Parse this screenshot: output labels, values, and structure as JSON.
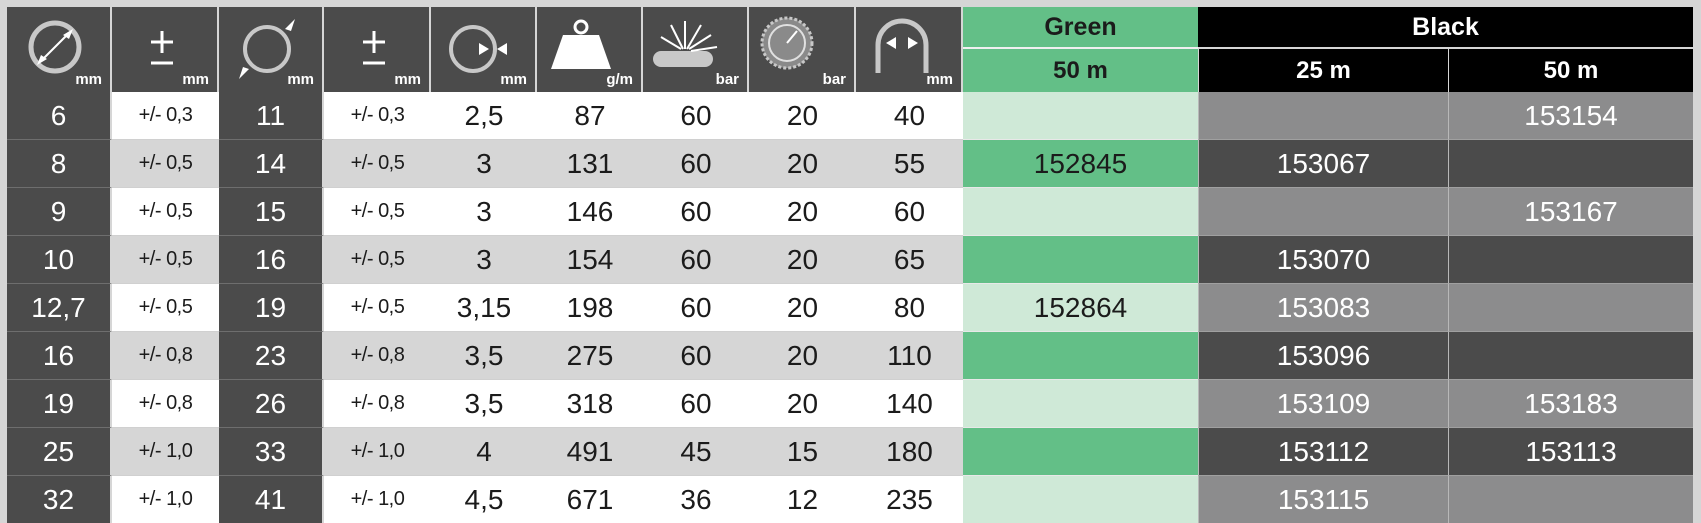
{
  "header": {
    "columns": [
      {
        "icon": "inner-diameter-icon",
        "unit": "mm"
      },
      {
        "icon": "plus-minus-icon",
        "unit": "mm"
      },
      {
        "icon": "outer-diameter-icon",
        "unit": "mm"
      },
      {
        "icon": "plus-minus-icon",
        "unit": "mm"
      },
      {
        "icon": "wall-thickness-icon",
        "unit": "mm"
      },
      {
        "icon": "weight-icon",
        "unit": "g/m"
      },
      {
        "icon": "burst-pressure-icon",
        "unit": "bar"
      },
      {
        "icon": "pressure-gauge-icon",
        "unit": "bar"
      },
      {
        "icon": "bend-radius-icon",
        "unit": "mm"
      }
    ],
    "groups": {
      "green": {
        "label": "Green",
        "sub": [
          "50 m"
        ]
      },
      "black": {
        "label": "Black",
        "sub": [
          "25 m",
          "50 m"
        ]
      }
    }
  },
  "rows": [
    {
      "cells": [
        "6",
        "+/- 0,3",
        "11",
        "+/- 0,3",
        "2,5",
        "87",
        "60",
        "20",
        "40"
      ],
      "green_50": "",
      "black_25": "",
      "black_50": "153154"
    },
    {
      "cells": [
        "8",
        "+/- 0,5",
        "14",
        "+/- 0,5",
        "3",
        "131",
        "60",
        "20",
        "55"
      ],
      "green_50": "152845",
      "black_25": "153067",
      "black_50": ""
    },
    {
      "cells": [
        "9",
        "+/- 0,5",
        "15",
        "+/- 0,5",
        "3",
        "146",
        "60",
        "20",
        "60"
      ],
      "green_50": "",
      "black_25": "",
      "black_50": "153167"
    },
    {
      "cells": [
        "10",
        "+/- 0,5",
        "16",
        "+/- 0,5",
        "3",
        "154",
        "60",
        "20",
        "65"
      ],
      "green_50": "",
      "black_25": "153070",
      "black_50": ""
    },
    {
      "cells": [
        "12,7",
        "+/- 0,5",
        "19",
        "+/- 0,5",
        "3,15",
        "198",
        "60",
        "20",
        "80"
      ],
      "green_50": "152864",
      "black_25": "153083",
      "black_50": ""
    },
    {
      "cells": [
        "16",
        "+/- 0,8",
        "23",
        "+/- 0,8",
        "3,5",
        "275",
        "60",
        "20",
        "110"
      ],
      "green_50": "",
      "black_25": "153096",
      "black_50": ""
    },
    {
      "cells": [
        "19",
        "+/- 0,8",
        "26",
        "+/- 0,8",
        "3,5",
        "318",
        "60",
        "20",
        "140"
      ],
      "green_50": "",
      "black_25": "153109",
      "black_50": "153183"
    },
    {
      "cells": [
        "25",
        "+/- 1,0",
        "33",
        "+/- 1,0",
        "4",
        "491",
        "45",
        "15",
        "180"
      ],
      "green_50": "",
      "black_25": "153112",
      "black_50": "153113"
    },
    {
      "cells": [
        "32",
        "+/- 1,0",
        "41",
        "+/- 1,0",
        "4,5",
        "671",
        "36",
        "12",
        "235"
      ],
      "green_50": "",
      "black_25": "153115",
      "black_50": ""
    }
  ],
  "colors": {
    "dark_cell": "#4b4b4b",
    "light_row": "#ffffff",
    "grey_row": "#d6d6d6",
    "green_light": "#cfe9d7",
    "green_dark": "#63bf87",
    "black_header": "#000000",
    "black_light": "#8c8c8d",
    "black_dark": "#4b4b4b"
  }
}
